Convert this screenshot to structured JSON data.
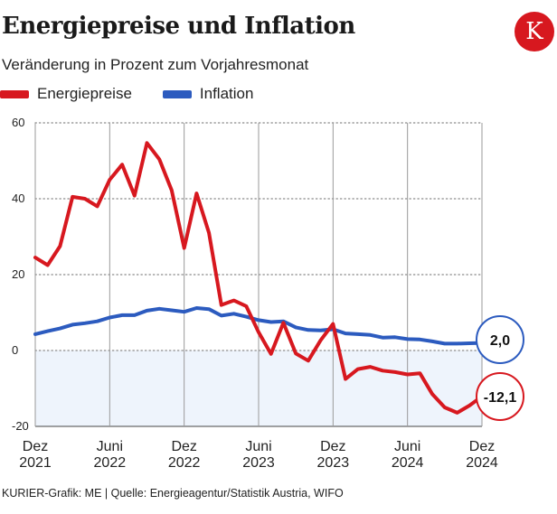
{
  "title": "Energiepreise und Inflation",
  "subtitle": "Veränderung in Prozent zum Vorjahresmonat",
  "logo_text": "K",
  "source": "KURIER-Grafik: ME | Quelle: Energieagentur/Statistik Austria, WIFO",
  "colors": {
    "energy": "#d7181f",
    "inflation": "#2c5bbf",
    "negative_band": "#eef4fc",
    "logo": "#d7181f"
  },
  "chart_data": {
    "type": "line",
    "title": "Energiepreise und Inflation",
    "ylabel": "Veränderung in Prozent zum Vorjahresmonat",
    "ylim": [
      -20,
      60
    ],
    "yticks": [
      60,
      40,
      20,
      0,
      -20
    ],
    "xlim": [
      0,
      36
    ],
    "x_ticks": [
      {
        "x": 0,
        "line1": "Dez",
        "line2": "2021"
      },
      {
        "x": 6,
        "line1": "Juni",
        "line2": "2022"
      },
      {
        "x": 12,
        "line1": "Dez",
        "line2": "2022"
      },
      {
        "x": 18,
        "line1": "Juni",
        "line2": "2023"
      },
      {
        "x": 24,
        "line1": "Dez",
        "line2": "2023"
      },
      {
        "x": 30,
        "line1": "Juni",
        "line2": "2024"
      },
      {
        "x": 36,
        "line1": "Dez",
        "line2": "2024"
      }
    ],
    "series": [
      {
        "name": "Energiepreise",
        "values": [
          24.5,
          22.5,
          27.5,
          40.5,
          40,
          38,
          45,
          49,
          40.8,
          54.7,
          50.4,
          42.2,
          27,
          41.4,
          31,
          12,
          13.2,
          11.7,
          4.8,
          -0.9,
          7.3,
          -0.8,
          -2.7,
          2.7,
          7,
          -7.5,
          -4.9,
          -4.3,
          -5.3,
          -5.7,
          -6.3,
          -6,
          -11.5,
          -15,
          -16.4,
          -14.5,
          -12.1
        ],
        "end_label": "-12,1"
      },
      {
        "name": "Inflation",
        "values": [
          4.3,
          5.1,
          5.8,
          6.8,
          7.2,
          7.7,
          8.7,
          9.3,
          9.3,
          10.5,
          11,
          10.6,
          10.2,
          11.2,
          10.9,
          9.2,
          9.7,
          8.9,
          8,
          7.5,
          7.7,
          6.1,
          5.4,
          5.3,
          5.6,
          4.5,
          4.3,
          4.1,
          3.4,
          3.5,
          3,
          2.9,
          2.4,
          1.8,
          1.8,
          1.9,
          2.0
        ],
        "end_label": "2,0"
      }
    ]
  }
}
